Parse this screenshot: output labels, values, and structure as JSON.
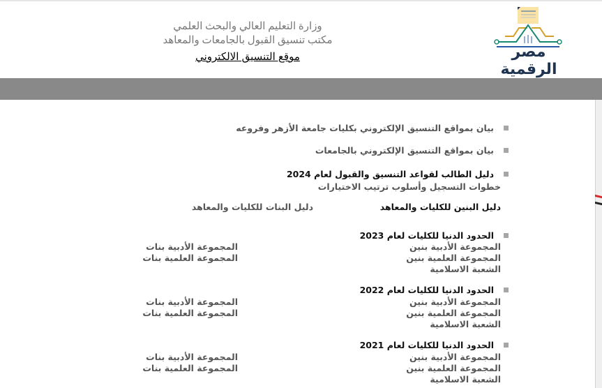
{
  "header": {
    "ministry": "وزارة التعليم العالي والبحث العلمي",
    "office": "مكتب تنسيق القبول بالجامعات والمعاهد",
    "site_link": "موقع التنسيق الالكتروني",
    "logo_text": "مصر الرقمية",
    "logo_colors": {
      "navy": "#1e3350",
      "teal": "#1b8a74",
      "gold": "#d4a02a",
      "paper": "#fbe3a6",
      "blue": "#2b5aa8"
    }
  },
  "links": {
    "azhar": "بيان بمواقع التنسيق الإلكتروني بكليات جامعة الأزهر وفروعه",
    "universities": "بيان بمواقع التنسيق الإلكتروني بالجامعات",
    "guide_title": "دليل الطالب لقواعد التنسيق والقبول لعام 2024",
    "guide_steps": "خطوات التسجيل وأسلوب ترتيب الاختيارات",
    "guide_boys": "دليل البنين للكليات والمعاهد",
    "guide_girls": "دليل البنات للكليات والمعاهد"
  },
  "years": [
    {
      "title": "الحدود الدنيا للكليات لعام 2023",
      "boys_lit": "المجموعة الأدبية بنين",
      "boys_sci": "المجموعة العلمية بنين",
      "islamic": "الشعبة الاسلامية",
      "girls_lit": "المجموعة الأدبية بنات",
      "girls_sci": "المجموعة العلمية بنات"
    },
    {
      "title": "الحدود الدنيا للكليات لعام 2022",
      "boys_lit": "المجموعة الأدبية بنين",
      "boys_sci": "المجموعة العلمية بنين",
      "islamic": "الشعبة الاسلامية",
      "girls_lit": "المجموعة الأدبية بنات",
      "girls_sci": "المجموعة العلمية بنات"
    },
    {
      "title": "الحدود الدنيا للكليات لعام 2021",
      "boys_lit": "المجموعة الأدبية بنين",
      "boys_sci": "المجموعة العلمية بنين",
      "islamic": "الشعبة الاسلامية",
      "girls_lit": "المجموعة الأدبية بنات",
      "girls_sci": "المجموعة العلمية بنات"
    }
  ]
}
